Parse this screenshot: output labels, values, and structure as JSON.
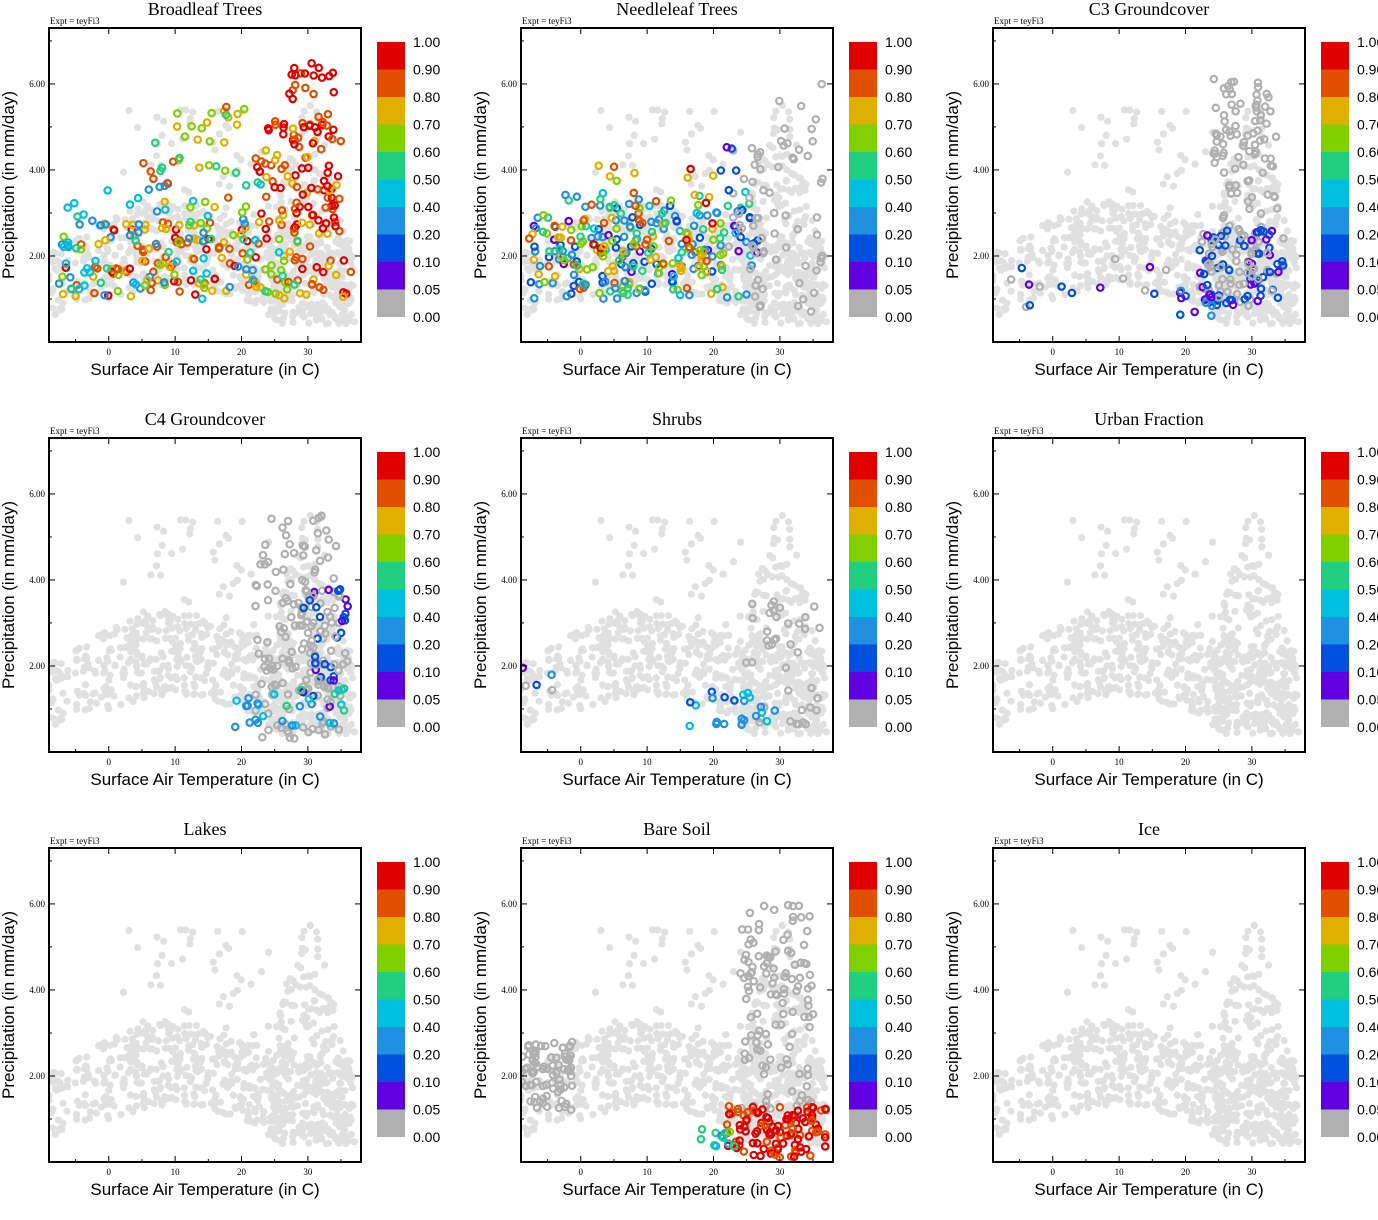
{
  "figure": {
    "expt_label": "Expt = teyFi3",
    "xlabel": "Surface Air Temperature (in C)",
    "ylabel": "Precipitation (in mm/day)",
    "x_ticks": [
      "0",
      "10",
      "20",
      "30"
    ],
    "y_ticks": [
      "2.00",
      "4.00",
      "6.00"
    ],
    "colorbar_labels": [
      "1.00",
      "0.90",
      "0.80",
      "0.70",
      "0.60",
      "0.50",
      "0.40",
      "0.20",
      "0.10",
      "0.05",
      "0.00"
    ],
    "colorbar_colors": [
      "#e00000",
      "#e05000",
      "#e0b000",
      "#80d000",
      "#20d080",
      "#00c0e0",
      "#2090e0",
      "#0050e0",
      "#6000e0",
      "#b0b0b0"
    ],
    "background_color": "#e0e0e0"
  },
  "chart_data": [
    {
      "type": "scatter",
      "title": "Broadleaf Trees",
      "xlabel": "Surface Air Temperature (in C)",
      "ylabel": "Precipitation (in mm/day)",
      "xlim": [
        -9,
        38
      ],
      "ylim": [
        0,
        7.3
      ],
      "colorbar_range": [
        0,
        1
      ],
      "clusters": [
        {
          "x": [
            -8,
            37
          ],
          "y": [
            1.0,
            2.8
          ],
          "fraction": 0.8,
          "n": 150
        },
        {
          "x": [
            22,
            35
          ],
          "y": [
            2.5,
            5.2
          ],
          "fraction": 0.9,
          "n": 100
        },
        {
          "x": [
            -8,
            25
          ],
          "y": [
            1.0,
            3.8
          ],
          "fraction": 0.4,
          "n": 60
        },
        {
          "x": [
            5,
            22
          ],
          "y": [
            3.0,
            5.5
          ],
          "fraction": 0.7,
          "n": 40
        },
        {
          "x": [
            -8,
            30
          ],
          "y": [
            1.0,
            2.5
          ],
          "fraction": 0.6,
          "n": 35
        },
        {
          "x": [
            27,
            34
          ],
          "y": [
            5.2,
            6.5
          ],
          "fraction": 0.95,
          "n": 20
        }
      ]
    },
    {
      "type": "scatter",
      "title": "Needleleaf Trees",
      "xlabel": "Surface Air Temperature (in C)",
      "ylabel": "Precipitation (in mm/day)",
      "xlim": [
        -9,
        38
      ],
      "ylim": [
        0,
        7.3
      ],
      "colorbar_range": [
        0,
        1
      ],
      "clusters": [
        {
          "x": [
            -8,
            26
          ],
          "y": [
            1.0,
            3.2
          ],
          "fraction": 0.2,
          "n": 100
        },
        {
          "x": [
            -8,
            22
          ],
          "y": [
            1.0,
            3.0
          ],
          "fraction": 0.7,
          "n": 90
        },
        {
          "x": [
            -5,
            26
          ],
          "y": [
            1.0,
            3.5
          ],
          "fraction": 0.45,
          "n": 55
        },
        {
          "x": [
            0,
            20
          ],
          "y": [
            1.5,
            4.2
          ],
          "fraction": 0.8,
          "n": 50
        },
        {
          "x": [
            20,
            30
          ],
          "y": [
            2.0,
            4.8
          ],
          "fraction": 0.05,
          "n": 30
        },
        {
          "x": [
            25,
            37
          ],
          "y": [
            0.5,
            6.0
          ],
          "fraction": 0.0,
          "n": 50
        }
      ]
    },
    {
      "type": "scatter",
      "title": "C3 Groundcover",
      "xlabel": "Surface Air Temperature (in C)",
      "ylabel": "Precipitation (in mm/day)",
      "xlim": [
        -9,
        38
      ],
      "ylim": [
        0,
        7.3
      ],
      "colorbar_range": [
        0,
        1
      ],
      "clusters": [
        {
          "x": [
            24,
            34
          ],
          "y": [
            2.0,
            6.2
          ],
          "fraction": 0.0,
          "n": 100
        },
        {
          "x": [
            22,
            35
          ],
          "y": [
            0.8,
            2.6
          ],
          "fraction": 0.05,
          "n": 120
        },
        {
          "x": [
            -9,
            20
          ],
          "y": [
            0.8,
            2.0
          ],
          "fraction": 0.05,
          "n": 15
        },
        {
          "x": [
            18,
            25
          ],
          "y": [
            0.6,
            1.2
          ],
          "fraction": 0.2,
          "n": 12
        }
      ]
    },
    {
      "type": "scatter",
      "title": "C4 Groundcover",
      "xlabel": "Surface Air Temperature (in C)",
      "ylabel": "Precipitation (in mm/day)",
      "xlim": [
        -9,
        38
      ],
      "ylim": [
        0,
        7.3
      ],
      "colorbar_range": [
        0,
        1
      ],
      "clusters": [
        {
          "x": [
            22,
            35
          ],
          "y": [
            0.3,
            5.5
          ],
          "fraction": 0.0,
          "n": 140
        },
        {
          "x": [
            29,
            36
          ],
          "y": [
            1.0,
            3.8
          ],
          "fraction": 0.05,
          "n": 60
        },
        {
          "x": [
            19,
            36
          ],
          "y": [
            0.5,
            1.5
          ],
          "fraction": 0.4,
          "n": 30
        }
      ]
    },
    {
      "type": "scatter",
      "title": "Shrubs",
      "xlabel": "Surface Air Temperature (in C)",
      "ylabel": "Precipitation (in mm/day)",
      "xlim": [
        -9,
        38
      ],
      "ylim": [
        0,
        7.3
      ],
      "colorbar_range": [
        0,
        1
      ],
      "clusters": [
        {
          "x": [
            24,
            36
          ],
          "y": [
            0.5,
            3.5
          ],
          "fraction": 0.0,
          "n": 40
        },
        {
          "x": [
            -9,
            -4
          ],
          "y": [
            1.2,
            2.0
          ],
          "fraction": 0.1,
          "n": 5
        },
        {
          "x": [
            15,
            30
          ],
          "y": [
            0.6,
            1.4
          ],
          "fraction": 0.3,
          "n": 22
        }
      ]
    },
    {
      "type": "scatter",
      "title": "Urban Fraction",
      "xlabel": "Surface Air Temperature (in C)",
      "ylabel": "Precipitation (in mm/day)",
      "xlim": [
        -9,
        38
      ],
      "ylim": [
        0,
        7.3
      ],
      "colorbar_range": [
        0,
        1
      ],
      "clusters": []
    },
    {
      "type": "scatter",
      "title": "Lakes",
      "xlabel": "Surface Air Temperature (in C)",
      "ylabel": "Precipitation (in mm/day)",
      "xlim": [
        -9,
        38
      ],
      "ylim": [
        0,
        7.3
      ],
      "colorbar_range": [
        0,
        1
      ],
      "clusters": []
    },
    {
      "type": "scatter",
      "title": "Bare Soil",
      "xlabel": "Surface Air Temperature (in C)",
      "ylabel": "Precipitation (in mm/day)",
      "xlim": [
        -9,
        38
      ],
      "ylim": [
        0,
        7.3
      ],
      "colorbar_range": [
        0,
        1
      ],
      "clusters": [
        {
          "x": [
            -9,
            -1
          ],
          "y": [
            1.2,
            2.8
          ],
          "fraction": 0.0,
          "n": 80
        },
        {
          "x": [
            24,
            35
          ],
          "y": [
            1.0,
            6.0
          ],
          "fraction": 0.0,
          "n": 120
        },
        {
          "x": [
            22,
            37
          ],
          "y": [
            0.1,
            1.3
          ],
          "fraction": 0.95,
          "n": 110
        },
        {
          "x": [
            18,
            24
          ],
          "y": [
            0.3,
            0.8
          ],
          "fraction": 0.5,
          "n": 12
        }
      ]
    },
    {
      "type": "scatter",
      "title": "Ice",
      "xlabel": "Surface Air Temperature (in C)",
      "ylabel": "Precipitation (in mm/day)",
      "xlim": [
        -9,
        38
      ],
      "ylim": [
        0,
        7.3
      ],
      "colorbar_range": [
        0,
        1
      ],
      "clusters": []
    }
  ]
}
